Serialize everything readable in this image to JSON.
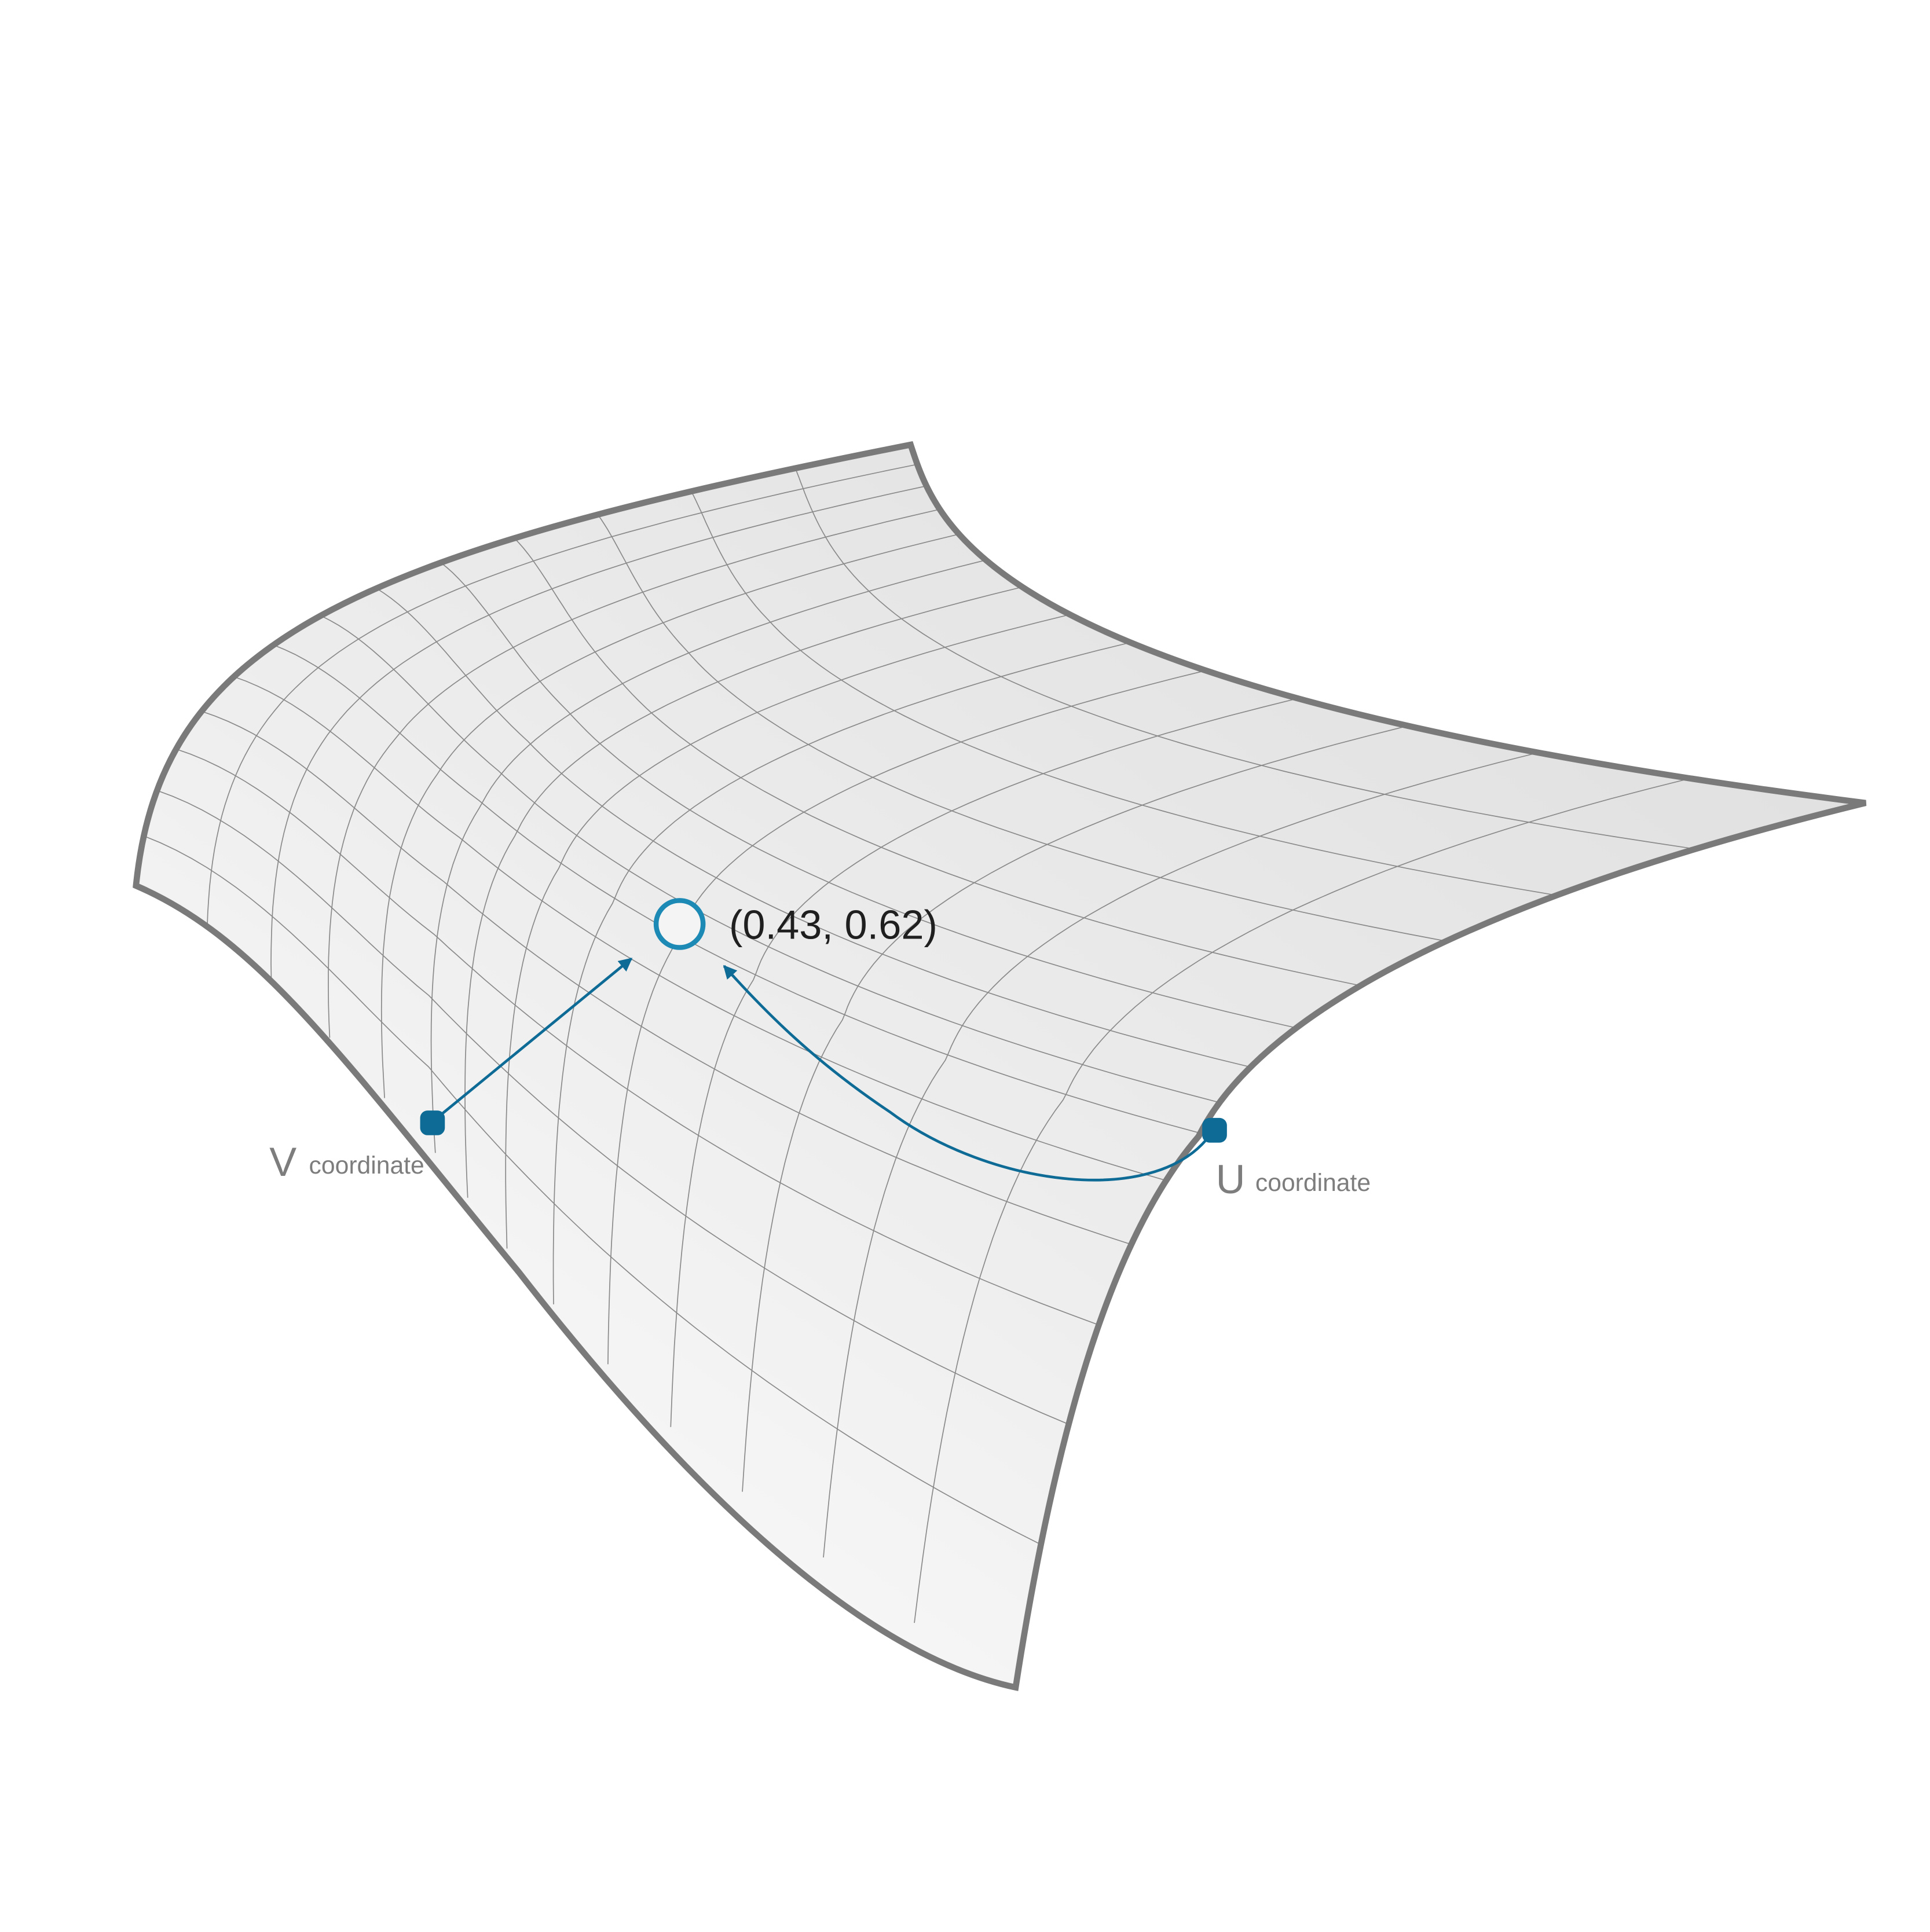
{
  "diagram": {
    "point": {
      "label": "(0.43, 0.62)",
      "u": 0.43,
      "v": 0.62
    },
    "v_axis": {
      "letter": "V",
      "word": "coordinate"
    },
    "u_axis": {
      "letter": "U",
      "word": "coordinate"
    },
    "grid": {
      "u_divisions": 14,
      "v_divisions": 14
    },
    "colors": {
      "accent": "#0e6b96",
      "point_ring": "#1d8ab5",
      "outline": "#7a7a7a",
      "grid_line": "#8a8a8a",
      "label_gray": "#7d7d7d",
      "label_dark": "#1f1f1f"
    }
  }
}
